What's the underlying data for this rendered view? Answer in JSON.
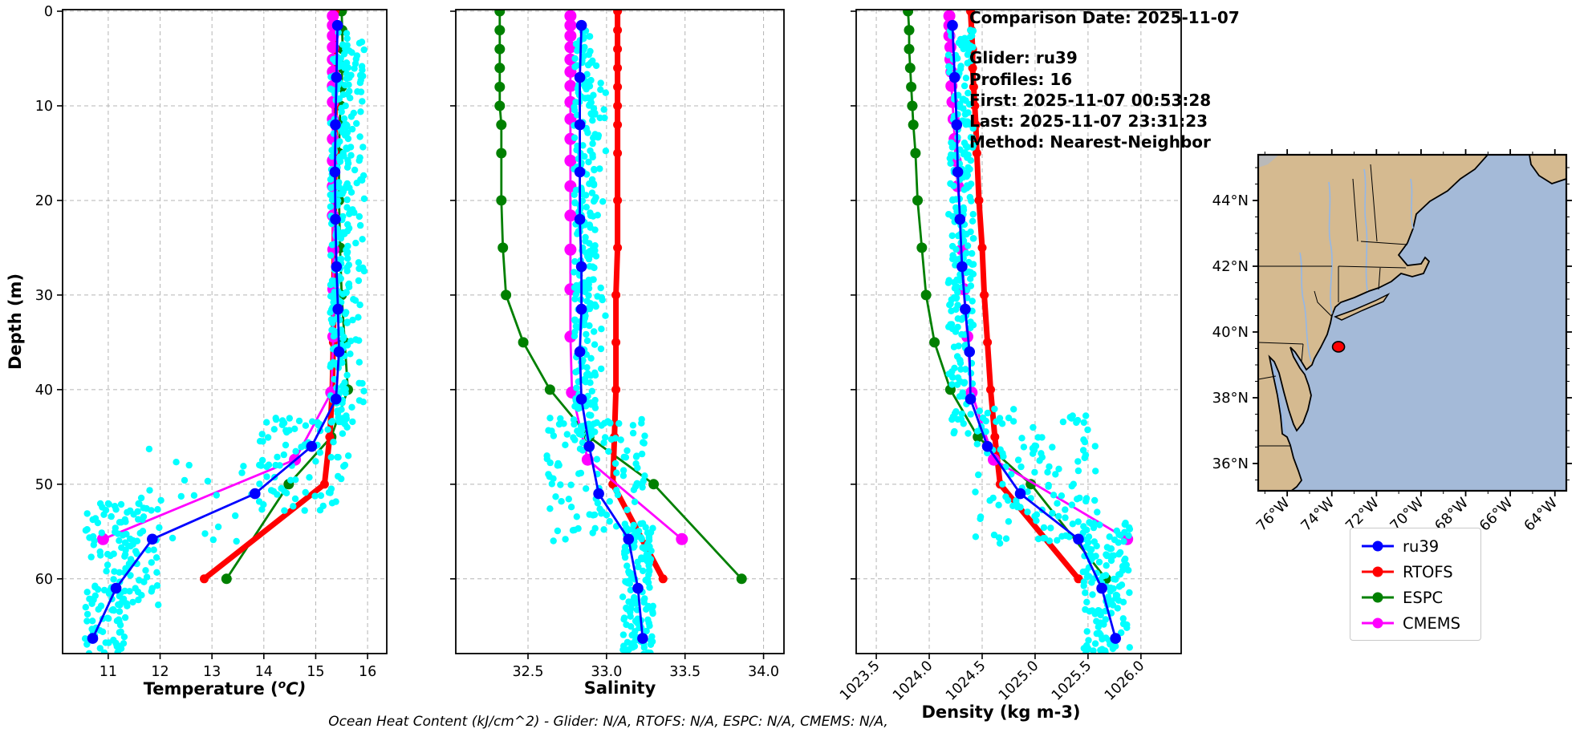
{
  "header": {
    "comparison_date": "Comparison Date: 2025-11-07",
    "glider": "Glider: ru39",
    "profiles": "Profiles: 16",
    "first": "First: 2025-11-07 00:53:28",
    "last": "Last: 2025-11-07 23:31:23",
    "method": "Method: Nearest-Neighbor"
  },
  "footnote": "Ocean Heat Content (kJ/cm^2) - Glider: N/A,  RTOFS: N/A,  ESPC: N/A,  CMEMS: N/A,",
  "colors": {
    "ru39": "#0000ff",
    "rtofs": "#ff0000",
    "espc": "#008000",
    "cmems": "#ff00ff",
    "scatter": "#00ffff",
    "land": "#d5ba90",
    "ocean": "#a4bad8",
    "river": "#93b7e8",
    "grid": "#b5b5b5",
    "marker_red": "#ff0000"
  },
  "legend": {
    "items": [
      {
        "label": "ru39",
        "color": "#0000ff"
      },
      {
        "label": "RTOFS",
        "color": "#ff0000"
      },
      {
        "label": "ESPC",
        "color": "#008000"
      },
      {
        "label": "CMEMS",
        "color": "#ff00ff"
      }
    ]
  },
  "depth_axis": {
    "label": "Depth (m)",
    "tick_vals": [
      0,
      10,
      20,
      30,
      40,
      50,
      60
    ],
    "tick_labels": [
      "0",
      "10",
      "20",
      "30",
      "40",
      "50",
      "60"
    ],
    "range": [
      -0.17,
      67.9
    ]
  },
  "chart_data": {
    "type": "line",
    "note": "Vertical ocean profiles, depth increases downward; 4 model/glider lines per panel plus cyan raw-glider scatter cloud",
    "panels": [
      {
        "id": "temperature",
        "xlabel": "Temperature (°C)",
        "xlabel_parts": [
          "Temperature (",
          "o",
          "C)"
        ],
        "xlim": [
          10.12,
          16.37
        ],
        "tick_vals": [
          11,
          12,
          13,
          14,
          15,
          16
        ],
        "tick_labels": [
          "11",
          "12",
          "13",
          "14",
          "15",
          "16"
        ],
        "series": [
          {
            "name": "ESPC",
            "color": "#008000",
            "lw": 2.8,
            "marker_r": 6.5,
            "depths": [
              0,
              2,
              4,
              6,
              8,
              10,
              12,
              15,
              20,
              25,
              30,
              35,
              40,
              45,
              50,
              60
            ],
            "values": [
              15.5,
              15.51,
              15.52,
              15.51,
              15.5,
              15.48,
              15.46,
              15.45,
              15.45,
              15.47,
              15.5,
              15.56,
              15.62,
              15.3,
              14.48,
              13.28
            ]
          },
          {
            "name": "RTOFS",
            "color": "#ff0000",
            "lw": 7,
            "marker_r": 5.5,
            "depths": [
              0,
              2,
              4,
              6,
              8,
              10,
              12,
              15,
              20,
              25,
              30,
              35,
              40,
              45,
              50,
              60
            ],
            "values": [
              15.37,
              15.37,
              15.37,
              15.37,
              15.37,
              15.37,
              15.37,
              15.37,
              15.36,
              15.36,
              15.35,
              15.34,
              15.32,
              15.27,
              15.17,
              12.85
            ]
          },
          {
            "name": "CMEMS",
            "color": "#ff00ff",
            "lw": 2.8,
            "marker_r": 7.5,
            "depths": [
              0.5,
              1.5,
              2.6,
              3.8,
              5.1,
              6.4,
              7.9,
              9.6,
              11.4,
              13.5,
              15.8,
              18.5,
              21.6,
              25.2,
              29.4,
              34.4,
              40.3,
              47.4,
              55.8
            ],
            "values": [
              15.33,
              15.33,
              15.33,
              15.33,
              15.33,
              15.33,
              15.33,
              15.33,
              15.33,
              15.33,
              15.33,
              15.33,
              15.33,
              15.34,
              15.34,
              15.34,
              15.3,
              14.6,
              10.9
            ]
          },
          {
            "name": "ru39",
            "color": "#0000ff",
            "lw": 2.8,
            "marker_r": 6.8,
            "depths": [
              1.5,
              7,
              12,
              17,
              22,
              27,
              31.5,
              36,
              41,
              46,
              51,
              55.8,
              61,
              66.3
            ],
            "values": [
              15.42,
              15.4,
              15.38,
              15.37,
              15.38,
              15.4,
              15.43,
              15.45,
              15.39,
              14.92,
              13.83,
              11.85,
              11.15,
              10.7
            ]
          }
        ],
        "scatter_bands": [
          {
            "d": [
              2,
              44
            ],
            "v": [
              15.28,
              15.62
            ],
            "n": 220
          },
          {
            "d": [
              3,
              42
            ],
            "v": [
              15.6,
              15.95
            ],
            "n": 85
          },
          {
            "d": [
              43,
              53
            ],
            "v": [
              13.9,
              15.75
            ],
            "n": 85
          },
          {
            "d": [
              46,
              57
            ],
            "v": [
              11.6,
              13.9
            ],
            "n": 22
          },
          {
            "d": [
              52,
              68
            ],
            "v": [
              10.55,
              11.35
            ],
            "n": 115
          },
          {
            "d": [
              52,
              63
            ],
            "v": [
              11.3,
              12.0
            ],
            "n": 55
          }
        ]
      },
      {
        "id": "salinity",
        "xlabel": "Salinity",
        "xlim": [
          32.04,
          34.13
        ],
        "tick_vals": [
          32.5,
          33.0,
          33.5,
          34.0
        ],
        "tick_labels": [
          "32.5",
          "33.0",
          "33.5",
          "34.0"
        ],
        "series": [
          {
            "name": "ESPC",
            "color": "#008000",
            "lw": 2.8,
            "marker_r": 6.5,
            "depths": [
              0,
              2,
              4,
              6,
              8,
              10,
              12,
              15,
              20,
              25,
              30,
              35,
              40,
              45,
              50,
              60
            ],
            "values": [
              32.32,
              32.32,
              32.32,
              32.32,
              32.32,
              32.32,
              32.33,
              32.33,
              32.33,
              32.34,
              32.36,
              32.47,
              32.64,
              32.89,
              33.3,
              33.86
            ]
          },
          {
            "name": "RTOFS",
            "color": "#ff0000",
            "lw": 7,
            "marker_r": 5.5,
            "depths": [
              0,
              2,
              4,
              6,
              8,
              10,
              12,
              15,
              20,
              25,
              30,
              35,
              40,
              45,
              50,
              60
            ],
            "values": [
              33.07,
              33.07,
              33.07,
              33.07,
              33.07,
              33.07,
              33.07,
              33.07,
              33.07,
              33.07,
              33.06,
              33.06,
              33.06,
              33.05,
              33.04,
              33.36
            ]
          },
          {
            "name": "CMEMS",
            "color": "#ff00ff",
            "lw": 2.8,
            "marker_r": 7.5,
            "depths": [
              0.5,
              1.5,
              2.6,
              3.8,
              5.1,
              6.4,
              7.9,
              9.6,
              11.4,
              13.5,
              15.8,
              18.5,
              21.6,
              25.2,
              29.4,
              34.4,
              40.3,
              47.4,
              55.8
            ],
            "values": [
              32.77,
              32.77,
              32.77,
              32.77,
              32.77,
              32.77,
              32.77,
              32.77,
              32.77,
              32.77,
              32.77,
              32.77,
              32.77,
              32.77,
              32.77,
              32.77,
              32.78,
              32.88,
              33.48
            ]
          },
          {
            "name": "ru39",
            "color": "#0000ff",
            "lw": 2.8,
            "marker_r": 6.8,
            "depths": [
              1.5,
              7,
              12,
              17,
              22,
              27,
              31.5,
              36,
              41,
              46,
              51,
              55.8,
              61,
              66.3
            ],
            "values": [
              32.84,
              32.83,
              32.83,
              32.83,
              32.83,
              32.84,
              32.84,
              32.83,
              32.84,
              32.89,
              32.95,
              33.14,
              33.2,
              33.23
            ]
          }
        ],
        "scatter_bands": [
          {
            "d": [
              2,
              45
            ],
            "v": [
              32.79,
              32.93
            ],
            "n": 250
          },
          {
            "d": [
              5,
              42
            ],
            "v": [
              32.92,
              33.0
            ],
            "n": 28
          },
          {
            "d": [
              43,
              56
            ],
            "v": [
              32.62,
              33.25
            ],
            "n": 115
          },
          {
            "d": [
              54,
              68
            ],
            "v": [
              33.1,
              33.3
            ],
            "n": 140
          }
        ]
      },
      {
        "id": "density",
        "xlabel": "Density (kg m-3)",
        "xlim": [
          1023.31,
          1026.38
        ],
        "tick_vals": [
          1023.5,
          1024.0,
          1024.5,
          1025.0,
          1025.5,
          1026.0
        ],
        "tick_labels": [
          "1023.5",
          "1024.0",
          "1024.5",
          "1025.0",
          "1025.5",
          "1026.0"
        ],
        "rotated_ticks": true,
        "series": [
          {
            "name": "ESPC",
            "color": "#008000",
            "lw": 2.8,
            "marker_r": 6.5,
            "depths": [
              0,
              2,
              4,
              6,
              8,
              10,
              12,
              15,
              20,
              25,
              30,
              35,
              40,
              45,
              50,
              60
            ],
            "values": [
              1023.8,
              1023.81,
              1023.81,
              1023.82,
              1023.83,
              1023.84,
              1023.85,
              1023.87,
              1023.89,
              1023.93,
              1023.97,
              1024.05,
              1024.2,
              1024.46,
              1024.96,
              1025.67
            ]
          },
          {
            "name": "RTOFS",
            "color": "#ff0000",
            "lw": 7,
            "marker_r": 5.5,
            "depths": [
              0,
              2,
              4,
              6,
              8,
              10,
              12,
              15,
              20,
              25,
              30,
              35,
              40,
              45,
              50,
              60
            ],
            "values": [
              1024.39,
              1024.4,
              1024.41,
              1024.41,
              1024.42,
              1024.43,
              1024.44,
              1024.45,
              1024.47,
              1024.5,
              1024.52,
              1024.55,
              1024.58,
              1024.62,
              1024.67,
              1025.41
            ]
          },
          {
            "name": "CMEMS",
            "color": "#ff00ff",
            "lw": 2.8,
            "marker_r": 7.5,
            "depths": [
              0.5,
              1.5,
              2.6,
              3.8,
              5.1,
              6.4,
              7.9,
              9.6,
              11.4,
              13.5,
              15.8,
              18.5,
              21.6,
              25.2,
              29.4,
              34.4,
              40.3,
              47.4,
              55.8
            ],
            "values": [
              1024.19,
              1024.19,
              1024.19,
              1024.2,
              1024.2,
              1024.21,
              1024.21,
              1024.22,
              1024.23,
              1024.24,
              1024.25,
              1024.27,
              1024.29,
              1024.31,
              1024.33,
              1024.36,
              1024.4,
              1024.61,
              1025.87
            ]
          },
          {
            "name": "ru39",
            "color": "#0000ff",
            "lw": 2.8,
            "marker_r": 6.8,
            "depths": [
              1.5,
              7,
              12,
              17,
              22,
              27,
              31.5,
              36,
              41,
              46,
              51,
              55.8,
              61,
              66.3
            ],
            "values": [
              1024.22,
              1024.24,
              1024.26,
              1024.27,
              1024.29,
              1024.31,
              1024.34,
              1024.38,
              1024.39,
              1024.55,
              1024.86,
              1025.41,
              1025.63,
              1025.76
            ]
          }
        ],
        "scatter_bands": [
          {
            "d": [
              2,
              45
            ],
            "v": [
              1024.18,
              1024.42
            ],
            "n": 250
          },
          {
            "d": [
              42,
              57
            ],
            "v": [
              1024.42,
              1025.6
            ],
            "n": 125
          },
          {
            "d": [
              54,
              68
            ],
            "v": [
              1025.45,
              1025.9
            ],
            "n": 140
          }
        ]
      }
    ],
    "map": {
      "lat_tick_vals": [
        44,
        42,
        40,
        38,
        36
      ],
      "lat_tick_labels": [
        "44°N",
        "42°N",
        "40°N",
        "38°N",
        "36°N"
      ],
      "lon_tick_vals": [
        76,
        74,
        72,
        70,
        68,
        66,
        64
      ],
      "lon_tick_labels": [
        "76°W",
        "74°W",
        "72°W",
        "70°W",
        "68°W",
        "66°W",
        "64°W"
      ],
      "marker": {
        "lon_w": 73.7,
        "lat": 39.55,
        "color": "#ff0000"
      }
    }
  }
}
